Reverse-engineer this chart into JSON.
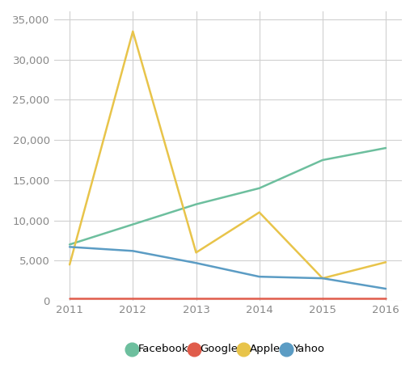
{
  "title": "",
  "years": [
    2011,
    2012,
    2013,
    2014,
    2015,
    2016
  ],
  "series": {
    "Facebook": {
      "values": [
        7000,
        9500,
        12000,
        14000,
        17500,
        19000
      ],
      "color": "#6dbf9e"
    },
    "Google": {
      "values": [
        300,
        300,
        300,
        300,
        300,
        300
      ],
      "color": "#e05c4b"
    },
    "Apple": {
      "values": [
        4500,
        33500,
        6000,
        11000,
        2800,
        4800
      ],
      "color": "#e8c44a"
    },
    "Yahoo": {
      "values": [
        6700,
        6200,
        4700,
        3000,
        2800,
        1500
      ],
      "color": "#5b9cc4"
    }
  },
  "ylim": [
    0,
    36000
  ],
  "yticks": [
    0,
    5000,
    10000,
    15000,
    20000,
    25000,
    30000,
    35000
  ],
  "background_color": "#ffffff",
  "grid_color": "#d0d0d0",
  "legend_order": [
    "Facebook",
    "Google",
    "Apple",
    "Yahoo"
  ],
  "tick_color": "#888888",
  "tick_fontsize": 9.5,
  "line_width": 1.8
}
